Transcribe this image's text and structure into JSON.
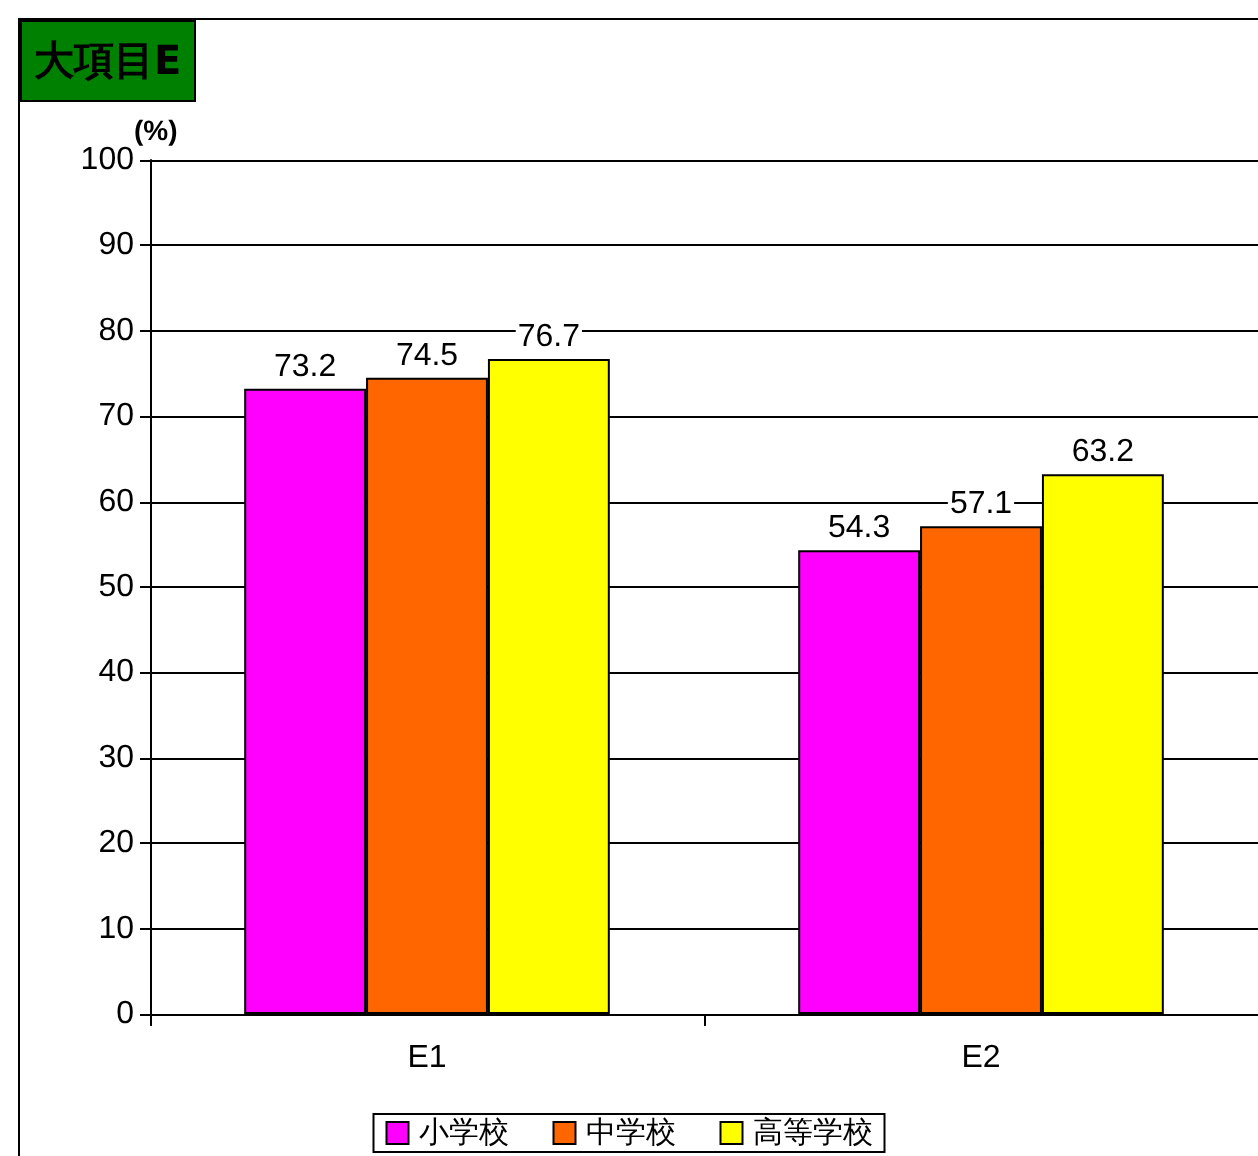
{
  "chart_data": {
    "type": "bar",
    "title": "大項目E",
    "ylabel": "(%)",
    "categories": [
      "E1",
      "E2"
    ],
    "series": [
      {
        "name": "小学校",
        "color": "#ff00ff",
        "values": [
          73.2,
          54.3
        ]
      },
      {
        "name": "中学校",
        "color": "#ff6600",
        "values": [
          74.5,
          57.1
        ]
      },
      {
        "name": "高等学校",
        "color": "#ffff00",
        "values": [
          76.7,
          63.2
        ]
      }
    ],
    "ylim": [
      0,
      100
    ],
    "yticks": [
      0,
      10,
      20,
      30,
      40,
      50,
      60,
      70,
      80,
      90,
      100
    ],
    "grid": "y",
    "legend": "bottom",
    "data_labels": true
  }
}
